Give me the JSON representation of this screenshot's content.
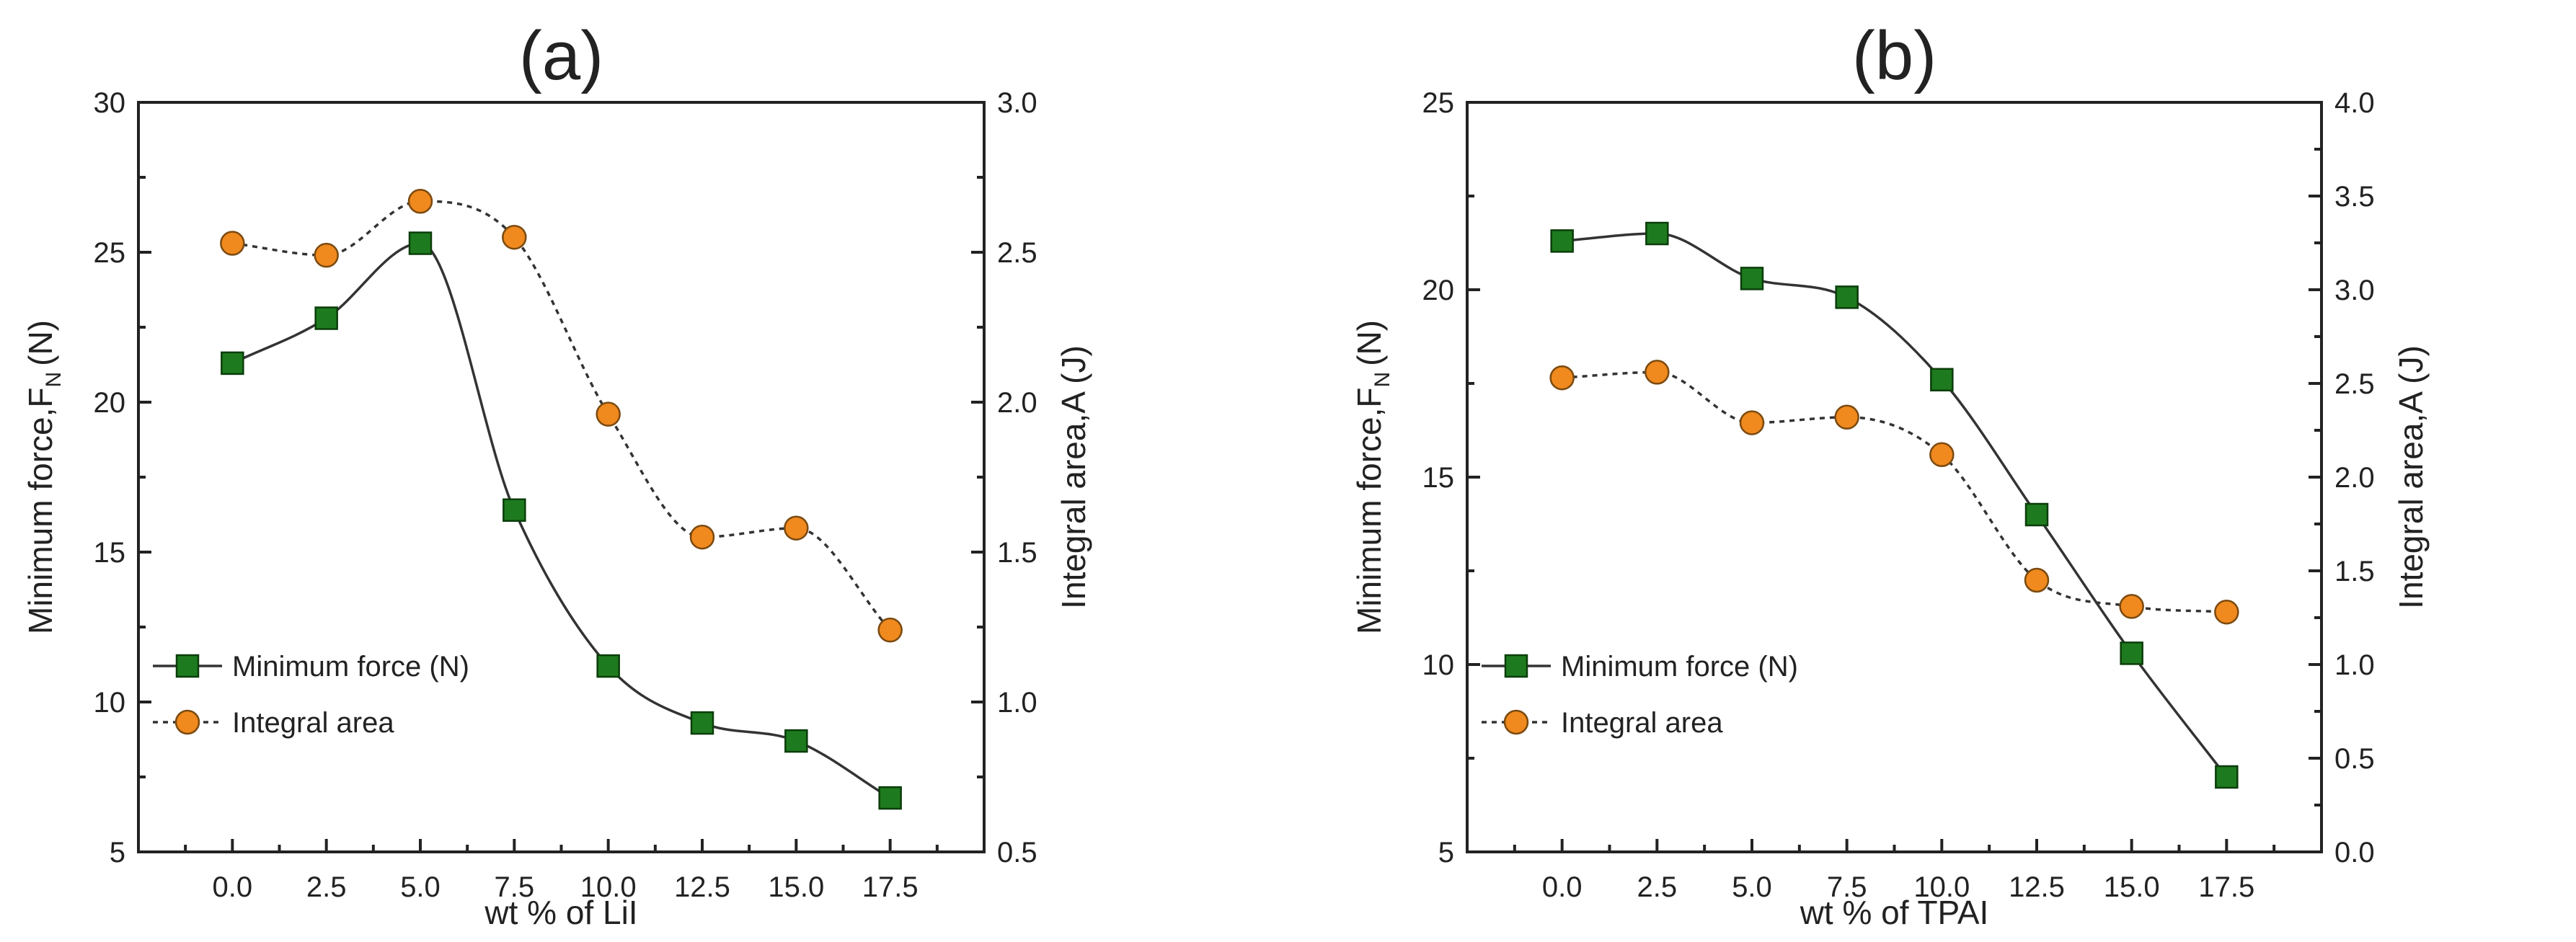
{
  "chart_data": [
    {
      "type": "line",
      "panel_label": "(a)",
      "xlabel": "wt % of LiI",
      "ylabel_left": "Minimum force,F",
      "ylabel_left_sub": "N",
      "ylabel_left_unit": "(N)",
      "ylabel_right": "Integral area,A (J)",
      "x": [
        0.0,
        2.5,
        5.0,
        7.5,
        10.0,
        12.5,
        15.0,
        17.5
      ],
      "x_tick_labels": [
        "0.0",
        "2.5",
        "5.0",
        "7.5",
        "10.0",
        "12.5",
        "15.0",
        "17.5"
      ],
      "xlim": [
        -2.5,
        20.0
      ],
      "ylim_left": [
        5,
        30
      ],
      "y_ticks_left": [
        "5",
        "10",
        "15",
        "20",
        "25",
        "30"
      ],
      "ylim_right": [
        0.5,
        3.0
      ],
      "y_ticks_right": [
        "0.5",
        "1.0",
        "1.5",
        "2.0",
        "2.5",
        "3.0"
      ],
      "series": [
        {
          "name": "Minimum force (N)",
          "axis": "left",
          "marker": "square",
          "line": "solid",
          "color": "#1e7a1e",
          "values": [
            21.3,
            22.8,
            25.3,
            16.4,
            11.2,
            9.3,
            8.7,
            6.8
          ]
        },
        {
          "name": "Integral area",
          "axis": "right",
          "marker": "circle",
          "line": "dotted",
          "color": "#f0891e",
          "values": [
            2.53,
            2.49,
            2.67,
            2.55,
            1.96,
            1.55,
            1.58,
            1.24
          ]
        }
      ],
      "legend_position": "bottom-left"
    },
    {
      "type": "line",
      "panel_label": "(b)",
      "xlabel": "wt % of TPAI",
      "ylabel_left": "Minimum force,F",
      "ylabel_left_sub": "N",
      "ylabel_left_unit": "(N)",
      "ylabel_right": "Integral area,A (J)",
      "x": [
        0.0,
        2.5,
        5.0,
        7.5,
        10.0,
        12.5,
        15.0,
        17.5
      ],
      "x_tick_labels": [
        "0.0",
        "2.5",
        "5.0",
        "7.5",
        "10.0",
        "12.5",
        "15.0",
        "17.5"
      ],
      "xlim": [
        -2.5,
        20.0
      ],
      "ylim_left": [
        5,
        25
      ],
      "y_ticks_left": [
        "5",
        "10",
        "15",
        "20",
        "25"
      ],
      "ylim_right": [
        0.0,
        4.0
      ],
      "y_ticks_right": [
        "0.0",
        "0.5",
        "1.0",
        "1.5",
        "2.0",
        "2.5",
        "3.0",
        "3.5",
        "4.0"
      ],
      "series": [
        {
          "name": "Minimum force (N)",
          "axis": "left",
          "marker": "square",
          "line": "solid",
          "color": "#1e7a1e",
          "values": [
            21.3,
            21.5,
            20.3,
            19.8,
            17.6,
            14.0,
            10.3,
            7.0
          ]
        },
        {
          "name": "Integral area",
          "axis": "right",
          "marker": "circle",
          "line": "dotted",
          "color": "#f0891e",
          "values": [
            2.53,
            2.56,
            2.29,
            2.32,
            2.12,
            1.45,
            1.31,
            1.28
          ]
        }
      ],
      "legend_position": "bottom-left"
    }
  ]
}
